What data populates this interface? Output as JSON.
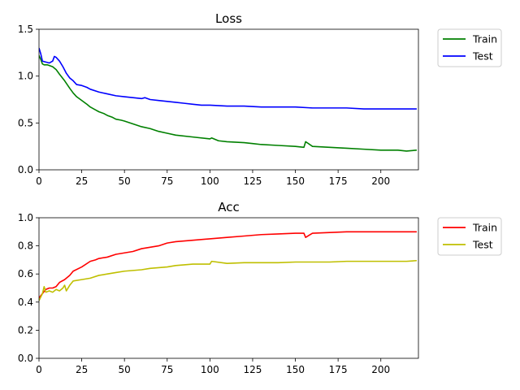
{
  "chart_data": [
    {
      "type": "line",
      "title": "Loss",
      "xlabel": "",
      "ylabel": "",
      "xlim": [
        0,
        222
      ],
      "ylim": [
        0,
        1.5
      ],
      "xticks": [
        "0",
        "25",
        "50",
        "75",
        "100",
        "125",
        "150",
        "175",
        "200"
      ],
      "yticks": [
        "0.0",
        "0.5",
        "1.0",
        "1.5"
      ],
      "grid": false,
      "legend_position": "outside-top-right",
      "series": [
        {
          "name": "Train",
          "color": "#008000",
          "x": [
            0,
            1,
            2,
            3,
            5,
            8,
            10,
            12,
            15,
            18,
            20,
            22,
            25,
            28,
            30,
            33,
            35,
            38,
            40,
            43,
            45,
            48,
            50,
            55,
            60,
            65,
            70,
            75,
            80,
            90,
            100,
            101,
            105,
            110,
            120,
            125,
            130,
            140,
            150,
            155,
            156,
            160,
            170,
            180,
            190,
            200,
            210,
            215,
            221
          ],
          "y": [
            1.22,
            1.18,
            1.13,
            1.12,
            1.12,
            1.1,
            1.07,
            1.02,
            0.95,
            0.87,
            0.82,
            0.78,
            0.74,
            0.7,
            0.67,
            0.64,
            0.62,
            0.6,
            0.58,
            0.56,
            0.54,
            0.53,
            0.52,
            0.49,
            0.46,
            0.44,
            0.41,
            0.39,
            0.37,
            0.35,
            0.33,
            0.34,
            0.31,
            0.3,
            0.29,
            0.28,
            0.27,
            0.26,
            0.25,
            0.24,
            0.3,
            0.25,
            0.24,
            0.23,
            0.22,
            0.21,
            0.21,
            0.2,
            0.21
          ]
        },
        {
          "name": "Test",
          "color": "#0000ff",
          "x": [
            0,
            1,
            2,
            4,
            6,
            8,
            9,
            10,
            12,
            14,
            16,
            18,
            20,
            22,
            25,
            28,
            30,
            35,
            40,
            45,
            50,
            55,
            60,
            62,
            65,
            70,
            75,
            80,
            85,
            90,
            95,
            100,
            110,
            120,
            130,
            140,
            150,
            160,
            170,
            180,
            190,
            200,
            210,
            215,
            221
          ],
          "y": [
            1.3,
            1.24,
            1.16,
            1.15,
            1.14,
            1.16,
            1.21,
            1.2,
            1.16,
            1.1,
            1.03,
            0.98,
            0.95,
            0.91,
            0.9,
            0.88,
            0.86,
            0.83,
            0.81,
            0.79,
            0.78,
            0.77,
            0.76,
            0.77,
            0.75,
            0.74,
            0.73,
            0.72,
            0.71,
            0.7,
            0.69,
            0.69,
            0.68,
            0.68,
            0.67,
            0.67,
            0.67,
            0.66,
            0.66,
            0.66,
            0.65,
            0.65,
            0.65,
            0.65,
            0.65
          ]
        }
      ]
    },
    {
      "type": "line",
      "title": "Acc",
      "xlabel": "",
      "ylabel": "",
      "xlim": [
        0,
        222
      ],
      "ylim": [
        0,
        1.0
      ],
      "xticks": [
        "0",
        "25",
        "50",
        "75",
        "100",
        "125",
        "150",
        "175",
        "200"
      ],
      "yticks": [
        "0.0",
        "0.2",
        "0.4",
        "0.6",
        "0.8",
        "1.0"
      ],
      "grid": false,
      "legend_position": "outside-top-right",
      "series": [
        {
          "name": "Train",
          "color": "#ff0000",
          "x": [
            0,
            2,
            4,
            6,
            8,
            10,
            12,
            15,
            18,
            20,
            25,
            30,
            33,
            35,
            40,
            45,
            50,
            55,
            60,
            65,
            70,
            75,
            80,
            90,
            100,
            110,
            120,
            125,
            130,
            140,
            150,
            155,
            156,
            160,
            170,
            180,
            190,
            200,
            210,
            215,
            221
          ],
          "y": [
            0.43,
            0.46,
            0.49,
            0.5,
            0.5,
            0.51,
            0.54,
            0.56,
            0.59,
            0.62,
            0.65,
            0.69,
            0.7,
            0.71,
            0.72,
            0.74,
            0.75,
            0.76,
            0.78,
            0.79,
            0.8,
            0.82,
            0.83,
            0.84,
            0.85,
            0.86,
            0.87,
            0.875,
            0.88,
            0.885,
            0.89,
            0.89,
            0.86,
            0.89,
            0.895,
            0.9,
            0.9,
            0.9,
            0.9,
            0.9,
            0.9
          ]
        },
        {
          "name": "Test",
          "color": "#bfbf00",
          "x": [
            0,
            2,
            3,
            4,
            6,
            8,
            10,
            12,
            14,
            15,
            16,
            18,
            20,
            25,
            30,
            35,
            40,
            45,
            50,
            55,
            60,
            65,
            70,
            75,
            80,
            85,
            90,
            100,
            101,
            110,
            120,
            130,
            140,
            150,
            160,
            170,
            180,
            190,
            200,
            210,
            215,
            221
          ],
          "y": [
            0.41,
            0.46,
            0.51,
            0.47,
            0.48,
            0.47,
            0.49,
            0.48,
            0.5,
            0.52,
            0.48,
            0.52,
            0.55,
            0.56,
            0.57,
            0.59,
            0.6,
            0.61,
            0.62,
            0.625,
            0.63,
            0.64,
            0.645,
            0.65,
            0.66,
            0.665,
            0.67,
            0.67,
            0.69,
            0.675,
            0.68,
            0.68,
            0.68,
            0.685,
            0.685,
            0.685,
            0.69,
            0.69,
            0.69,
            0.69,
            0.69,
            0.695
          ]
        }
      ]
    }
  ]
}
